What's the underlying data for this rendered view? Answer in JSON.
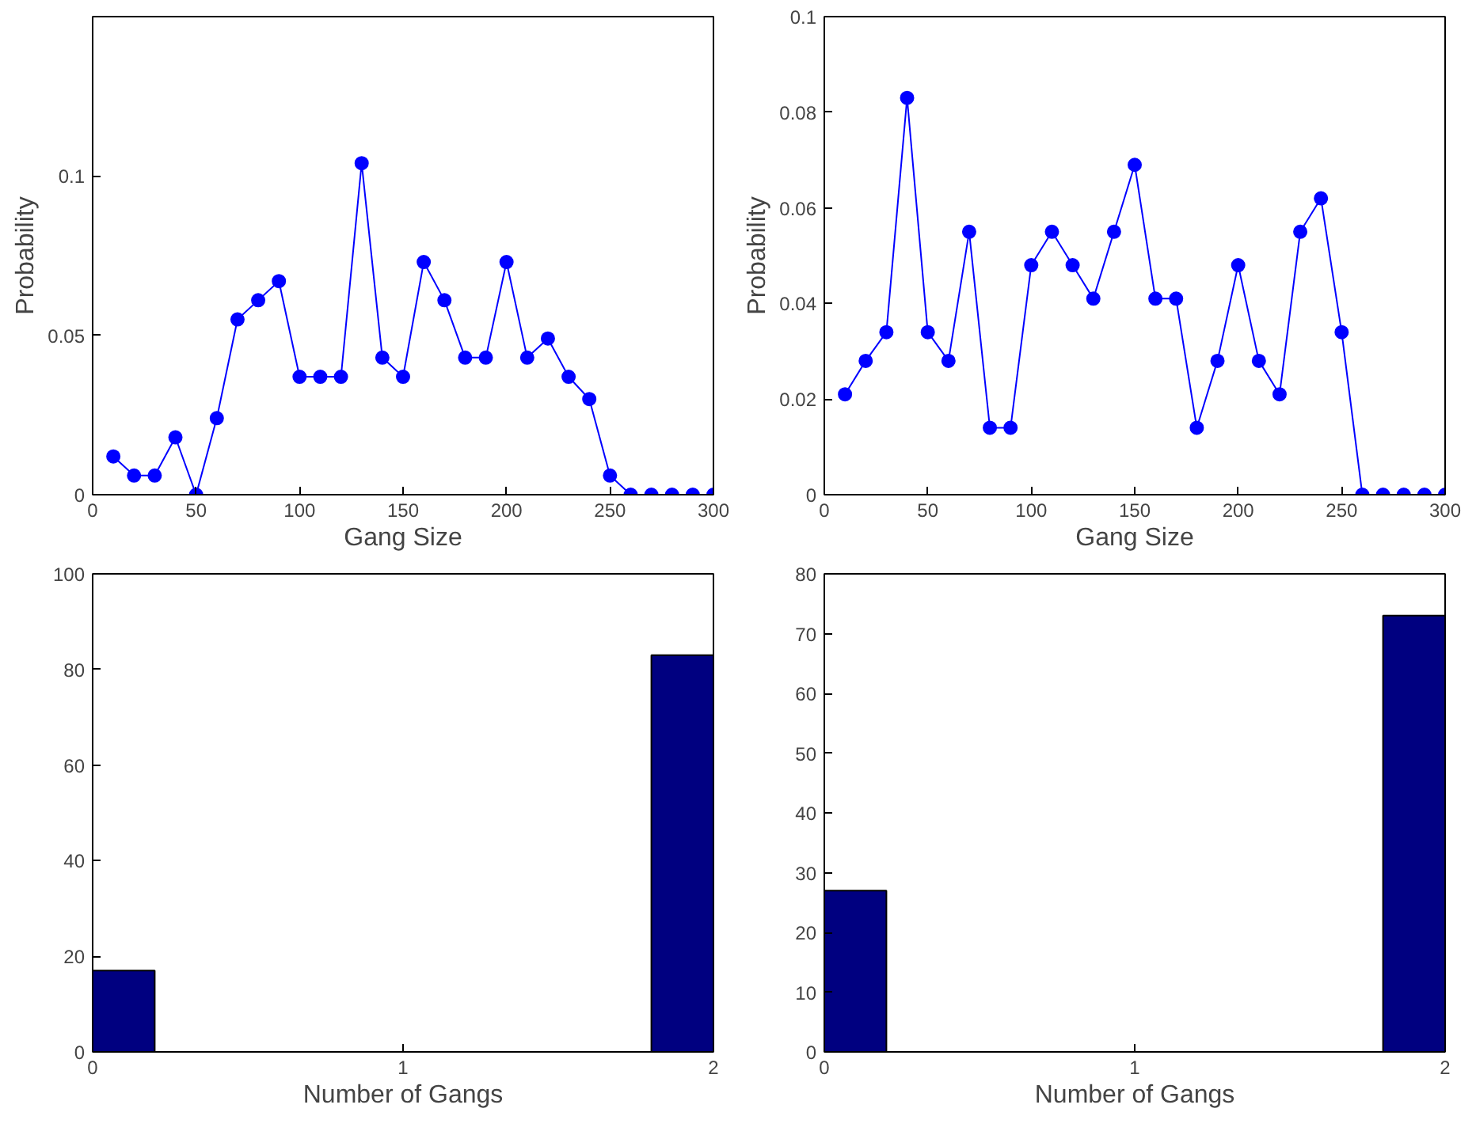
{
  "chart_data": [
    {
      "type": "line",
      "x": [
        10,
        20,
        30,
        40,
        50,
        60,
        70,
        80,
        90,
        100,
        110,
        120,
        130,
        140,
        150,
        160,
        170,
        180,
        190,
        200,
        210,
        220,
        230,
        240,
        250,
        260,
        270,
        280,
        290,
        300
      ],
      "series": [
        {
          "color": "#0000ff",
          "values": [
            0.012,
            0.006,
            0.006,
            0.018,
            0,
            0.024,
            0.055,
            0.061,
            0.067,
            0.037,
            0.037,
            0.037,
            0.104,
            0.043,
            0.037,
            0.073,
            0.061,
            0.043,
            0.043,
            0.073,
            0.043,
            0.049,
            0.037,
            0.03,
            0.006,
            0,
            0,
            0,
            0,
            0
          ]
        }
      ],
      "xlabel": "Gang Size",
      "ylabel": "Probability",
      "xlim": [
        0,
        300
      ],
      "xticks": [
        0,
        50,
        100,
        150,
        200,
        250,
        300
      ],
      "ylim": [
        0,
        0.15
      ],
      "yticks": [
        0,
        0.05,
        0.1
      ],
      "marker": "circle",
      "line_style": "solid",
      "grid": false
    },
    {
      "type": "line",
      "x": [
        10,
        20,
        30,
        40,
        50,
        60,
        70,
        80,
        90,
        100,
        110,
        120,
        130,
        140,
        150,
        160,
        170,
        180,
        190,
        200,
        210,
        220,
        230,
        240,
        250,
        260,
        270,
        280,
        290,
        300
      ],
      "series": [
        {
          "color": "#0000ff",
          "values": [
            0.021,
            0.028,
            0.034,
            0.083,
            0.034,
            0.028,
            0.055,
            0.014,
            0.014,
            0.048,
            0.055,
            0.048,
            0.041,
            0.055,
            0.069,
            0.041,
            0.041,
            0.014,
            0.028,
            0.048,
            0.028,
            0.021,
            0.055,
            0.062,
            0.034,
            0,
            0,
            0,
            0,
            0
          ]
        }
      ],
      "xlabel": "Gang Size",
      "ylabel": "Probability",
      "xlim": [
        0,
        300
      ],
      "xticks": [
        0,
        50,
        100,
        150,
        200,
        250,
        300
      ],
      "ylim": [
        0,
        0.1
      ],
      "yticks": [
        0,
        0.02,
        0.04,
        0.06,
        0.08,
        0.1
      ],
      "marker": "circle",
      "line_style": "solid",
      "grid": false
    },
    {
      "type": "histogram",
      "bins": [
        0,
        0.2,
        0.4,
        0.6,
        0.8,
        1.0,
        1.2,
        1.4,
        1.6,
        1.8,
        2.0
      ],
      "values": [
        17,
        0,
        0,
        0,
        0,
        0,
        0,
        0,
        0,
        83
      ],
      "color": "#000080",
      "xlabel": "Number of Gangs",
      "xlim": [
        0,
        2
      ],
      "xticks": [
        0,
        1,
        2
      ],
      "ylim": [
        0,
        100
      ],
      "yticks": [
        0,
        20,
        40,
        60,
        80,
        100
      ],
      "grid": false
    },
    {
      "type": "histogram",
      "bins": [
        0,
        0.2,
        0.4,
        0.6,
        0.8,
        1.0,
        1.2,
        1.4,
        1.6,
        1.8,
        2.0
      ],
      "values": [
        27,
        0,
        0,
        0,
        0,
        0,
        0,
        0,
        0,
        73
      ],
      "color": "#000080",
      "xlabel": "Number of Gangs",
      "xlim": [
        0,
        2
      ],
      "xticks": [
        0,
        1,
        2
      ],
      "ylim": [
        0,
        80
      ],
      "yticks": [
        0,
        10,
        20,
        30,
        40,
        50,
        60,
        70,
        80
      ],
      "grid": false
    }
  ]
}
